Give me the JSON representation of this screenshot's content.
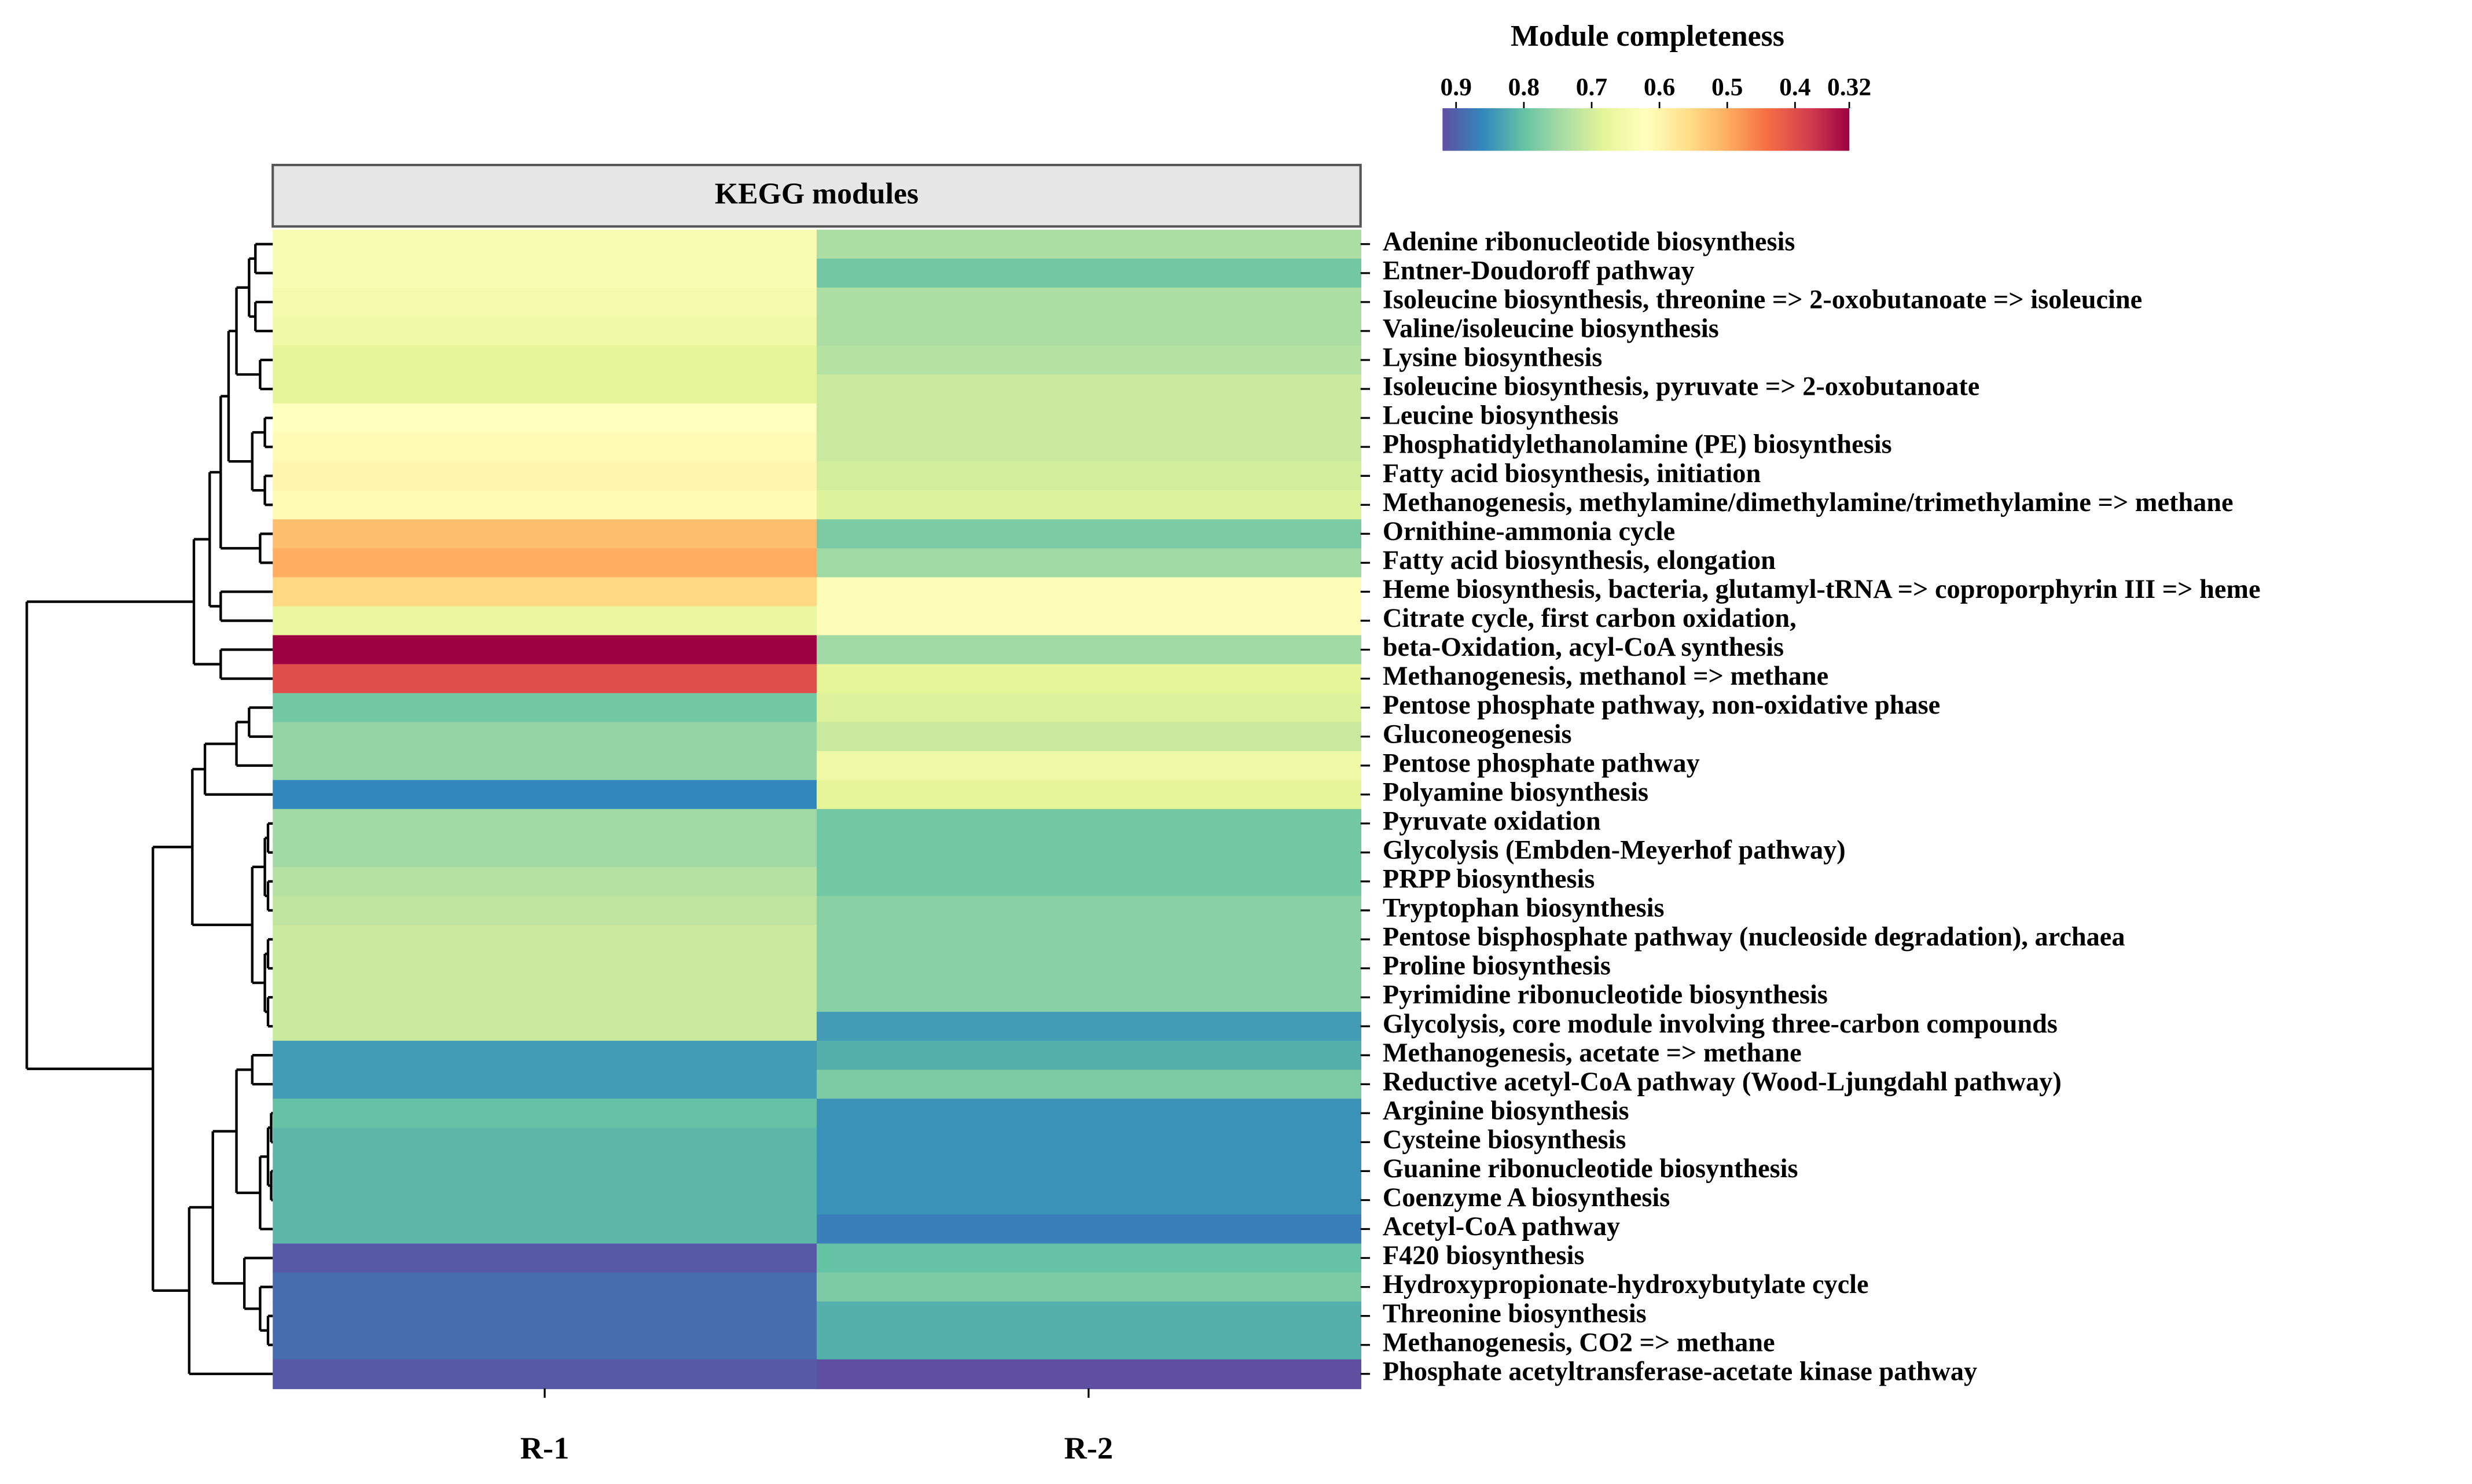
{
  "chart_data": {
    "type": "heatmap",
    "title": "Module completeness",
    "header": "KEGG modules",
    "colormap": "Spectral",
    "clim": [
      0.32,
      0.92
    ],
    "cticks": [
      0.9,
      0.8,
      0.7,
      0.6,
      0.5,
      0.4,
      0.32
    ],
    "x": [
      "R-1",
      "R-2"
    ],
    "rows": [
      "Adenine ribonucleotide biosynthesis",
      "Entner-Doudoroff pathway",
      "Isoleucine biosynthesis, threonine => 2-oxobutanoate => isoleucine",
      "Valine/isoleucine biosynthesis",
      "Lysine biosynthesis",
      "Isoleucine biosynthesis, pyruvate => 2-oxobutanoate",
      "Leucine biosynthesis",
      "Phosphatidylethanolamine (PE) biosynthesis",
      "Fatty acid biosynthesis, initiation",
      "Methanogenesis, methylamine/dimethylamine/trimethylamine => methane",
      "Ornithine-ammonia cycle",
      "Fatty acid biosynthesis, elongation",
      "Heme biosynthesis, bacteria, glutamyl-tRNA => coproporphyrin III => heme",
      "Citrate cycle, first carbon oxidation,",
      "beta-Oxidation, acyl-CoA synthesis",
      "Methanogenesis, methanol => methane",
      "Pentose phosphate pathway, non-oxidative phase",
      "Gluconeogenesis",
      "Pentose phosphate pathway",
      "Polyamine biosynthesis",
      "Pyruvate oxidation",
      "Glycolysis (Embden-Meyerhof pathway)",
      "PRPP biosynthesis",
      "Tryptophan biosynthesis",
      "Pentose bisphosphate pathway (nucleoside degradation), archaea",
      "Proline biosynthesis",
      "Pyrimidine ribonucleotide biosynthesis",
      "Glycolysis, core module involving three-carbon compounds",
      "Methanogenesis, acetate => methane",
      "Reductive acetyl-CoA pathway (Wood-Ljungdahl pathway)",
      "Arginine biosynthesis",
      "Cysteine biosynthesis",
      "Guanine ribonucleotide biosynthesis",
      "Coenzyme A biosynthesis",
      "Acetyl-CoA pathway",
      "F420 biosynthesis",
      "Hydroxypropionate-hydroxybutylate cycle",
      "Threonine biosynthesis",
      "Methanogenesis, CO2 => methane",
      "Phosphate acetyltransferase-acetate kinase pathway"
    ],
    "values": [
      [
        0.64,
        0.74
      ],
      [
        0.64,
        0.79
      ],
      [
        0.65,
        0.74
      ],
      [
        0.66,
        0.74
      ],
      [
        0.68,
        0.73
      ],
      [
        0.68,
        0.71
      ],
      [
        0.62,
        0.71
      ],
      [
        0.61,
        0.71
      ],
      [
        0.6,
        0.7
      ],
      [
        0.61,
        0.69
      ],
      [
        0.52,
        0.78
      ],
      [
        0.5,
        0.75
      ],
      [
        0.55,
        0.63
      ],
      [
        0.67,
        0.63
      ],
      [
        0.32,
        0.75
      ],
      [
        0.4,
        0.68
      ],
      [
        0.79,
        0.69
      ],
      [
        0.76,
        0.71
      ],
      [
        0.76,
        0.66
      ],
      [
        0.86,
        0.68
      ],
      [
        0.75,
        0.79
      ],
      [
        0.75,
        0.79
      ],
      [
        0.73,
        0.79
      ],
      [
        0.72,
        0.77
      ],
      [
        0.71,
        0.77
      ],
      [
        0.71,
        0.77
      ],
      [
        0.71,
        0.77
      ],
      [
        0.71,
        0.84
      ],
      [
        0.84,
        0.82
      ],
      [
        0.84,
        0.78
      ],
      [
        0.8,
        0.85
      ],
      [
        0.81,
        0.85
      ],
      [
        0.81,
        0.85
      ],
      [
        0.81,
        0.85
      ],
      [
        0.81,
        0.87
      ],
      [
        0.91,
        0.8
      ],
      [
        0.89,
        0.78
      ],
      [
        0.89,
        0.82
      ],
      [
        0.89,
        0.82
      ],
      [
        0.91,
        0.92
      ]
    ]
  }
}
